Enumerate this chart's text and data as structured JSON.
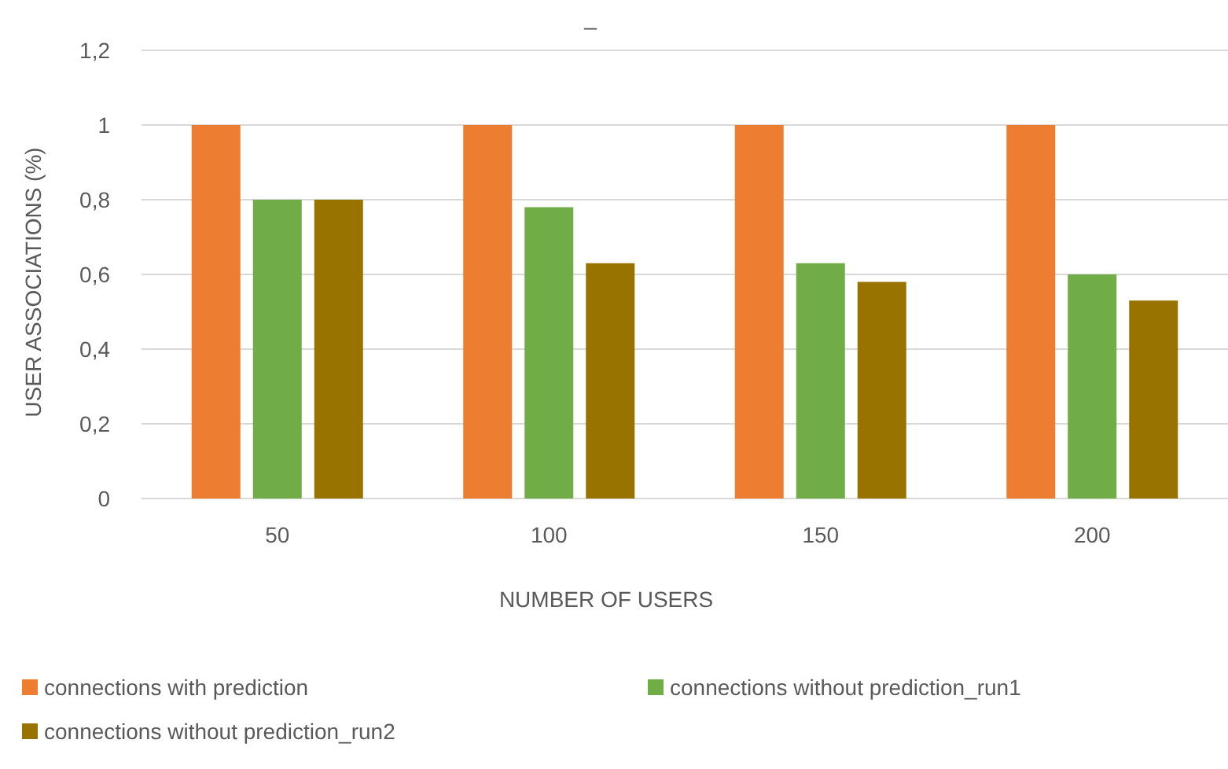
{
  "chart_data": {
    "type": "bar",
    "title": "_",
    "xlabel": "NUMBER OF USERS",
    "ylabel": "USER ASSOCIATIONS (%)",
    "categories": [
      "50",
      "100",
      "150",
      "200"
    ],
    "series": [
      {
        "name": "connections with prediction",
        "color": "#ed7d31",
        "values": [
          1,
          1,
          1,
          1
        ]
      },
      {
        "name": "connections without prediction_run1",
        "color": "#70ad47",
        "values": [
          0.8,
          0.78,
          0.63,
          0.6
        ]
      },
      {
        "name": "connections without prediction_run2",
        "color": "#997300",
        "values": [
          0.8,
          0.63,
          0.58,
          0.53
        ]
      }
    ],
    "ylim": [
      0,
      1.2
    ],
    "yticks": [
      0,
      {
        "value": 0.2,
        "label": "0,2"
      },
      {
        "value": 0.4,
        "label": "0,4"
      },
      {
        "value": 0.6,
        "label": "0,6"
      },
      {
        "value": 0.8,
        "label": "0,8"
      },
      1,
      {
        "value": 1.2,
        "label": "1,2"
      }
    ],
    "grid": "y",
    "legend": "bottom"
  }
}
